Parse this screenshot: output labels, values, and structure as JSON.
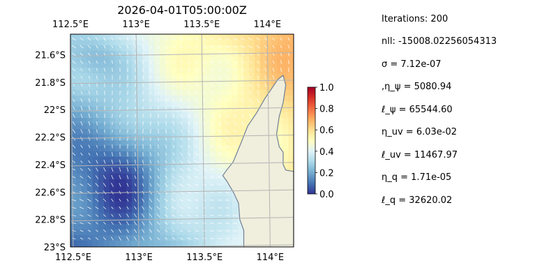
{
  "chart_data": {
    "type": "heatmap",
    "title": "2026-04-01T05:00:00Z",
    "map": {
      "lon_range": [
        112.5,
        114.2
      ],
      "lat_range": [
        -23.0,
        -21.45
      ],
      "x_ticks": [
        "112.5°E",
        "113°E",
        "113.5°E",
        "114°E"
      ],
      "x_tick_values": [
        112.5,
        113.0,
        113.5,
        114.0
      ],
      "y_ticks": [
        "21.6°S",
        "21.8°S",
        "22°S",
        "22.2°S",
        "22.4°S",
        "22.6°S",
        "22.8°S",
        "23°S"
      ],
      "y_tick_values": [
        -21.6,
        -21.8,
        -22.0,
        -22.2,
        -22.4,
        -22.6,
        -22.8,
        -23.0
      ],
      "grid": true,
      "colormap": "RdYlBu_r",
      "field": "normalized intensity with velocity arrows",
      "coastline": [
        [
          113.82,
          -23.0
        ],
        [
          113.82,
          -22.88
        ],
        [
          113.79,
          -22.8
        ],
        [
          113.78,
          -22.68
        ],
        [
          113.74,
          -22.6
        ],
        [
          113.69,
          -22.52
        ],
        [
          113.66,
          -22.48
        ],
        [
          113.69,
          -22.44
        ],
        [
          113.74,
          -22.38
        ],
        [
          113.8,
          -22.24
        ],
        [
          113.85,
          -22.12
        ],
        [
          113.92,
          -22.02
        ],
        [
          113.98,
          -21.92
        ],
        [
          114.03,
          -21.85
        ],
        [
          114.08,
          -21.78
        ],
        [
          114.12,
          -21.75
        ],
        [
          114.14,
          -21.82
        ],
        [
          114.12,
          -21.95
        ],
        [
          114.09,
          -22.05
        ],
        [
          114.07,
          -22.18
        ],
        [
          114.09,
          -22.27
        ],
        [
          114.12,
          -22.31
        ],
        [
          114.12,
          -22.4
        ],
        [
          114.14,
          -22.44
        ],
        [
          114.2,
          -22.45
        ],
        [
          114.2,
          -23.0
        ]
      ]
    },
    "colorbar": {
      "range": [
        0.0,
        1.0
      ],
      "ticks": [
        "0.0",
        "0.2",
        "0.4",
        "0.6",
        "0.8",
        "1.0"
      ]
    }
  },
  "stats": {
    "iterations": "Iterations: 200",
    "nll": "nll: -15008.02256054313",
    "sigma": "σ = 7.12e-07",
    "eta_psi": ",η_ψ = 5080.94",
    "ell_psi": "ℓ_ψ = 65544.60",
    "eta_uv": "η_uv = 6.03e-02",
    "ell_uv": "ℓ_uv = 11467.97",
    "eta_q": "η_q = 1.71e-05",
    "ell_q": "ℓ_q = 32620.02"
  },
  "colors": {
    "land": "#f0eedc",
    "ocean": "#a6c4e6",
    "coastline": "#6f7f96",
    "grid": "#b4b4b4",
    "arrow": "#ffffff"
  }
}
